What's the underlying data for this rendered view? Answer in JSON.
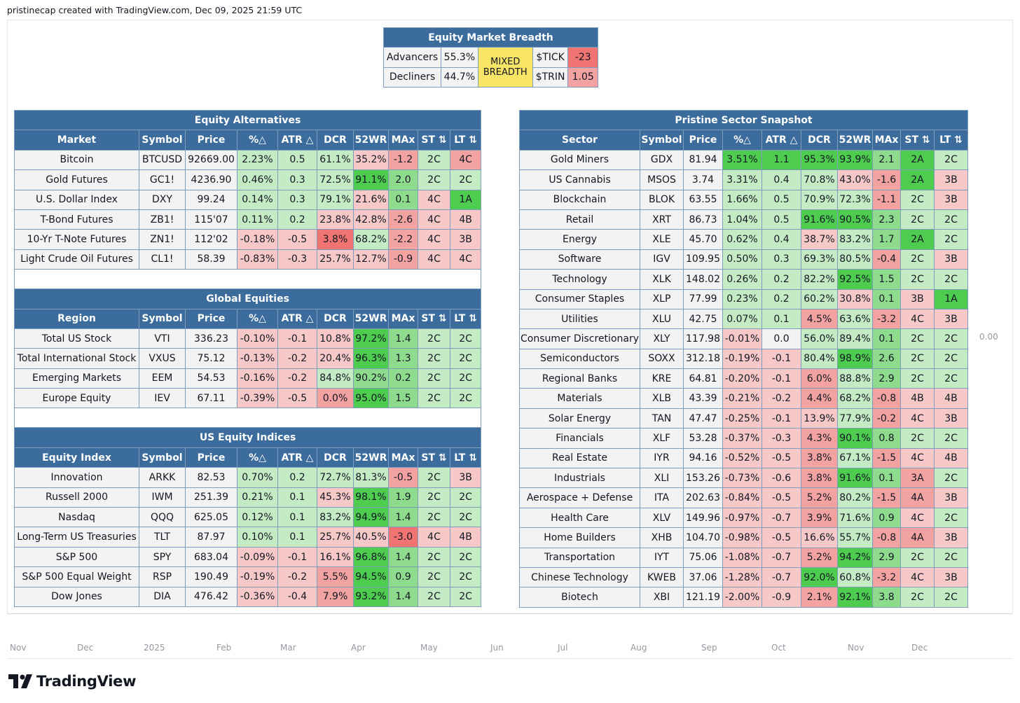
{
  "header": {
    "text": "pristinecap created with TradingView.com, Dec 09, 2025 21:59 UTC"
  },
  "breadth": {
    "title": "Equity Market Breadth",
    "advancers_label": "Advancers",
    "advancers_value": "55.3%",
    "decliners_label": "Decliners",
    "decliners_value": "44.7%",
    "status_line1": "MIXED",
    "status_line2": "BREADTH",
    "tick_label": "$TICK",
    "tick_value": "-23",
    "trin_label": "$TRIN",
    "trin_value": "1.05"
  },
  "columns": {
    "pct": "%△",
    "atr": "ATR △",
    "dcr": "DCR",
    "wr": "52WR",
    "max": "MAx",
    "st": "ST ⇅",
    "lt": "LT ⇅",
    "symbol": "Symbol",
    "price": "Price"
  },
  "alternatives": {
    "title": "Equity Alternatives",
    "first_col": "Market",
    "rows": [
      {
        "name": "Bitcoin",
        "symbol": "BTCUSD",
        "price": "92669.00",
        "pct": "2.23%",
        "atr": "0.5",
        "dcr": "61.1%",
        "wr": "35.2%",
        "max": "-1.2",
        "st": "2C",
        "lt": "4C",
        "c": [
          "g1",
          "g1",
          "g1",
          "r1",
          "r2",
          "g1",
          "r2"
        ]
      },
      {
        "name": "Gold Futures",
        "symbol": "GC1!",
        "price": "4236.90",
        "pct": "0.46%",
        "atr": "0.3",
        "dcr": "72.5%",
        "wr": "91.1%",
        "max": "2.0",
        "st": "2C",
        "lt": "2C",
        "c": [
          "g1",
          "g1",
          "g1",
          "g3",
          "g2",
          "g1",
          "g1"
        ]
      },
      {
        "name": "U.S. Dollar Index",
        "symbol": "DXY",
        "price": "99.24",
        "pct": "0.14%",
        "atr": "0.3",
        "dcr": "79.1%",
        "wr": "21.6%",
        "max": "0.1",
        "st": "4C",
        "lt": "1A",
        "c": [
          "g1",
          "g1",
          "g1",
          "r1",
          "g2",
          "r1",
          "g3"
        ]
      },
      {
        "name": "T-Bond Futures",
        "symbol": "ZB1!",
        "price": "115'07",
        "pct": "0.11%",
        "atr": "0.2",
        "dcr": "23.8%",
        "wr": "42.8%",
        "max": "-2.6",
        "st": "4C",
        "lt": "4B",
        "c": [
          "g1",
          "g1",
          "r1",
          "r1",
          "r2",
          "r1",
          "r1"
        ]
      },
      {
        "name": "10-Yr T-Note Futures",
        "symbol": "ZN1!",
        "price": "112'02",
        "pct": "-0.18%",
        "atr": "-0.5",
        "dcr": "3.8%",
        "wr": "68.2%",
        "max": "-2.2",
        "st": "4C",
        "lt": "3B",
        "c": [
          "r1",
          "r1",
          "r3",
          "g1",
          "r2",
          "r1",
          "r1"
        ]
      },
      {
        "name": "Light Crude Oil Futures",
        "symbol": "CL1!",
        "price": "58.39",
        "pct": "-0.83%",
        "atr": "-0.3",
        "dcr": "25.7%",
        "wr": "12.7%",
        "max": "-0.9",
        "st": "4C",
        "lt": "4C",
        "c": [
          "r1",
          "r1",
          "r1",
          "r1",
          "r2",
          "r1",
          "r1"
        ]
      }
    ]
  },
  "global": {
    "title": "Global Equities",
    "first_col": "Region",
    "rows": [
      {
        "name": "Total US Stock",
        "symbol": "VTI",
        "price": "336.23",
        "pct": "-0.10%",
        "atr": "-0.1",
        "dcr": "10.8%",
        "wr": "97.2%",
        "max": "1.4",
        "st": "2C",
        "lt": "2C",
        "c": [
          "r1",
          "r1",
          "r1",
          "g3",
          "g2",
          "g1",
          "g1"
        ]
      },
      {
        "name": "Total International Stock",
        "symbol": "VXUS",
        "price": "75.12",
        "pct": "-0.13%",
        "atr": "-0.2",
        "dcr": "20.4%",
        "wr": "96.3%",
        "max": "1.3",
        "st": "2C",
        "lt": "2C",
        "c": [
          "r1",
          "r1",
          "r1",
          "g3",
          "g2",
          "g1",
          "g1"
        ]
      },
      {
        "name": "Emerging Markets",
        "symbol": "EEM",
        "price": "54.53",
        "pct": "-0.16%",
        "atr": "-0.2",
        "dcr": "84.8%",
        "wr": "90.2%",
        "max": "0.2",
        "st": "2C",
        "lt": "2C",
        "c": [
          "r1",
          "r1",
          "g1",
          "g2",
          "g2",
          "g1",
          "g1"
        ]
      },
      {
        "name": "Europe Equity",
        "symbol": "IEV",
        "price": "67.11",
        "pct": "-0.39%",
        "atr": "-0.5",
        "dcr": "0.0%",
        "wr": "95.0%",
        "max": "1.5",
        "st": "2C",
        "lt": "2C",
        "c": [
          "r1",
          "r1",
          "r2",
          "g3",
          "g2",
          "g1",
          "g1"
        ]
      }
    ]
  },
  "indices": {
    "title": "US Equity Indices",
    "first_col": "Equity Index",
    "rows": [
      {
        "name": "Innovation",
        "symbol": "ARKK",
        "price": "82.53",
        "pct": "0.70%",
        "atr": "0.2",
        "dcr": "72.7%",
        "wr": "81.3%",
        "max": "-0.5",
        "st": "2C",
        "lt": "3B",
        "c": [
          "g1",
          "g1",
          "g1",
          "g1",
          "r2",
          "g1",
          "r1"
        ]
      },
      {
        "name": "Russell 2000",
        "symbol": "IWM",
        "price": "251.39",
        "pct": "0.21%",
        "atr": "0.1",
        "dcr": "45.3%",
        "wr": "98.1%",
        "max": "1.9",
        "st": "2C",
        "lt": "2C",
        "c": [
          "g1",
          "g1",
          "r1",
          "g3",
          "g2",
          "g1",
          "g1"
        ]
      },
      {
        "name": "Nasdaq",
        "symbol": "QQQ",
        "price": "625.05",
        "pct": "0.12%",
        "atr": "0.1",
        "dcr": "83.2%",
        "wr": "94.9%",
        "max": "1.4",
        "st": "2C",
        "lt": "2C",
        "c": [
          "g1",
          "g1",
          "g1",
          "g3",
          "g2",
          "g1",
          "g1"
        ]
      },
      {
        "name": "Long-Term US Treasuries",
        "symbol": "TLT",
        "price": "87.97",
        "pct": "0.10%",
        "atr": "0.1",
        "dcr": "25.7%",
        "wr": "40.5%",
        "max": "-3.0",
        "st": "4C",
        "lt": "4B",
        "c": [
          "g1",
          "g1",
          "r1",
          "r1",
          "r3",
          "r1",
          "r1"
        ]
      },
      {
        "name": "S&P 500",
        "symbol": "SPY",
        "price": "683.04",
        "pct": "-0.09%",
        "atr": "-0.1",
        "dcr": "16.1%",
        "wr": "96.8%",
        "max": "1.4",
        "st": "2C",
        "lt": "2C",
        "c": [
          "r1",
          "r1",
          "r1",
          "g3",
          "g2",
          "g1",
          "g1"
        ]
      },
      {
        "name": "S&P 500 Equal Weight",
        "symbol": "RSP",
        "price": "190.49",
        "pct": "-0.19%",
        "atr": "-0.2",
        "dcr": "5.5%",
        "wr": "94.5%",
        "max": "0.9",
        "st": "2C",
        "lt": "2C",
        "c": [
          "r1",
          "r1",
          "r2",
          "g3",
          "g2",
          "g1",
          "g1"
        ]
      },
      {
        "name": "Dow Jones",
        "symbol": "DIA",
        "price": "476.42",
        "pct": "-0.36%",
        "atr": "-0.4",
        "dcr": "7.9%",
        "wr": "93.2%",
        "max": "1.4",
        "st": "2C",
        "lt": "2C",
        "c": [
          "r1",
          "r1",
          "r2",
          "g3",
          "g2",
          "g1",
          "g1"
        ]
      }
    ]
  },
  "sectors": {
    "title": "Pristine Sector Snapshot",
    "first_col": "Sector",
    "rows": [
      {
        "name": "Gold Miners",
        "symbol": "GDX",
        "price": "81.94",
        "pct": "3.51%",
        "atr": "1.1",
        "dcr": "95.3%",
        "wr": "93.9%",
        "max": "2.1",
        "st": "2A",
        "lt": "2C",
        "c": [
          "g3",
          "g3",
          "g3",
          "g3",
          "g2",
          "g3",
          "g1"
        ]
      },
      {
        "name": "US Cannabis",
        "symbol": "MSOS",
        "price": "3.74",
        "pct": "3.31%",
        "atr": "0.4",
        "dcr": "70.8%",
        "wr": "43.0%",
        "max": "-1.6",
        "st": "2A",
        "lt": "3B",
        "c": [
          "g1",
          "g1",
          "g1",
          "r1",
          "r2",
          "g3",
          "r1"
        ]
      },
      {
        "name": "Blockchain",
        "symbol": "BLOK",
        "price": "63.55",
        "pct": "1.66%",
        "atr": "0.5",
        "dcr": "70.9%",
        "wr": "72.3%",
        "max": "-1.1",
        "st": "2C",
        "lt": "3B",
        "c": [
          "g1",
          "g1",
          "g1",
          "g1",
          "r2",
          "g1",
          "r1"
        ]
      },
      {
        "name": "Retail",
        "symbol": "XRT",
        "price": "86.73",
        "pct": "1.04%",
        "atr": "0.5",
        "dcr": "91.6%",
        "wr": "90.5%",
        "max": "2.3",
        "st": "2C",
        "lt": "2C",
        "c": [
          "g1",
          "g1",
          "g3",
          "g3",
          "g2",
          "g1",
          "g1"
        ]
      },
      {
        "name": "Energy",
        "symbol": "XLE",
        "price": "45.70",
        "pct": "0.62%",
        "atr": "0.4",
        "dcr": "38.7%",
        "wr": "83.2%",
        "max": "1.7",
        "st": "2A",
        "lt": "2C",
        "c": [
          "g1",
          "g1",
          "r1",
          "g1",
          "g2",
          "g3",
          "g1"
        ]
      },
      {
        "name": "Software",
        "symbol": "IGV",
        "price": "109.95",
        "pct": "0.50%",
        "atr": "0.3",
        "dcr": "69.3%",
        "wr": "80.5%",
        "max": "-0.4",
        "st": "2C",
        "lt": "3B",
        "c": [
          "g1",
          "g1",
          "g1",
          "g1",
          "r2",
          "g1",
          "r1"
        ]
      },
      {
        "name": "Technology",
        "symbol": "XLK",
        "price": "148.02",
        "pct": "0.26%",
        "atr": "0.2",
        "dcr": "82.2%",
        "wr": "92.5%",
        "max": "1.5",
        "st": "2C",
        "lt": "2C",
        "c": [
          "g1",
          "g1",
          "g1",
          "g3",
          "g2",
          "g1",
          "g1"
        ]
      },
      {
        "name": "Consumer Staples",
        "symbol": "XLP",
        "price": "77.99",
        "pct": "0.23%",
        "atr": "0.2",
        "dcr": "60.2%",
        "wr": "30.8%",
        "max": "0.1",
        "st": "3B",
        "lt": "1A",
        "c": [
          "g1",
          "g1",
          "g1",
          "r1",
          "g2",
          "r1",
          "g3"
        ]
      },
      {
        "name": "Utilities",
        "symbol": "XLU",
        "price": "42.75",
        "pct": "0.07%",
        "atr": "0.1",
        "dcr": "4.5%",
        "wr": "63.6%",
        "max": "-3.2",
        "st": "4C",
        "lt": "3B",
        "c": [
          "g1",
          "g1",
          "r2",
          "g1",
          "r2",
          "r1",
          "r1"
        ]
      },
      {
        "name": "Consumer Discretionary",
        "symbol": "XLY",
        "price": "117.98",
        "pct": "-0.01%",
        "atr": "0.0",
        "dcr": "56.0%",
        "wr": "89.4%",
        "max": "0.1",
        "st": "2C",
        "lt": "2C",
        "c": [
          "r1",
          "n0",
          "g1",
          "g1",
          "g2",
          "g1",
          "g1"
        ]
      },
      {
        "name": "Semiconductors",
        "symbol": "SOXX",
        "price": "312.18",
        "pct": "-0.19%",
        "atr": "-0.1",
        "dcr": "80.4%",
        "wr": "98.9%",
        "max": "2.6",
        "st": "2C",
        "lt": "2C",
        "c": [
          "r1",
          "r1",
          "g1",
          "g3",
          "g2",
          "g1",
          "g1"
        ]
      },
      {
        "name": "Regional Banks",
        "symbol": "KRE",
        "price": "64.81",
        "pct": "-0.20%",
        "atr": "-0.1",
        "dcr": "6.0%",
        "wr": "88.8%",
        "max": "2.9",
        "st": "2C",
        "lt": "2C",
        "c": [
          "r1",
          "r1",
          "r2",
          "g1",
          "g2",
          "g1",
          "g1"
        ]
      },
      {
        "name": "Materials",
        "symbol": "XLB",
        "price": "43.39",
        "pct": "-0.21%",
        "atr": "-0.2",
        "dcr": "4.4%",
        "wr": "68.2%",
        "max": "-0.8",
        "st": "4B",
        "lt": "4B",
        "c": [
          "r1",
          "r1",
          "r2",
          "g1",
          "r2",
          "r1",
          "r1"
        ]
      },
      {
        "name": "Solar Energy",
        "symbol": "TAN",
        "price": "47.47",
        "pct": "-0.25%",
        "atr": "-0.1",
        "dcr": "13.9%",
        "wr": "77.9%",
        "max": "-0.2",
        "st": "4C",
        "lt": "3B",
        "c": [
          "r1",
          "r1",
          "r1",
          "g1",
          "r2",
          "r1",
          "r1"
        ]
      },
      {
        "name": "Financials",
        "symbol": "XLF",
        "price": "53.28",
        "pct": "-0.37%",
        "atr": "-0.3",
        "dcr": "4.3%",
        "wr": "90.1%",
        "max": "0.8",
        "st": "2C",
        "lt": "2C",
        "c": [
          "r1",
          "r1",
          "r2",
          "g3",
          "g2",
          "g1",
          "g1"
        ]
      },
      {
        "name": "Real Estate",
        "symbol": "IYR",
        "price": "94.16",
        "pct": "-0.52%",
        "atr": "-0.5",
        "dcr": "3.8%",
        "wr": "67.1%",
        "max": "-1.5",
        "st": "4C",
        "lt": "4B",
        "c": [
          "r1",
          "r1",
          "r2",
          "g1",
          "r2",
          "r1",
          "r1"
        ]
      },
      {
        "name": "Industrials",
        "symbol": "XLI",
        "price": "153.26",
        "pct": "-0.73%",
        "atr": "-0.6",
        "dcr": "3.8%",
        "wr": "91.6%",
        "max": "0.1",
        "st": "3A",
        "lt": "2C",
        "c": [
          "r1",
          "r1",
          "r2",
          "g3",
          "g2",
          "r2",
          "g1"
        ]
      },
      {
        "name": "Aerospace + Defense",
        "symbol": "ITA",
        "price": "202.63",
        "pct": "-0.84%",
        "atr": "-0.5",
        "dcr": "5.2%",
        "wr": "80.2%",
        "max": "-1.5",
        "st": "4A",
        "lt": "3B",
        "c": [
          "r1",
          "r1",
          "r2",
          "g1",
          "r2",
          "r2",
          "r1"
        ]
      },
      {
        "name": "Health Care",
        "symbol": "XLV",
        "price": "149.96",
        "pct": "-0.97%",
        "atr": "-0.7",
        "dcr": "3.9%",
        "wr": "71.6%",
        "max": "0.9",
        "st": "4C",
        "lt": "2C",
        "c": [
          "r1",
          "r1",
          "r2",
          "g1",
          "g2",
          "r1",
          "g1"
        ]
      },
      {
        "name": "Home Builders",
        "symbol": "XHB",
        "price": "104.70",
        "pct": "-0.98%",
        "atr": "-0.5",
        "dcr": "16.6%",
        "wr": "55.7%",
        "max": "-0.8",
        "st": "4A",
        "lt": "3B",
        "c": [
          "r1",
          "r1",
          "r1",
          "g1",
          "r2",
          "r2",
          "r1"
        ]
      },
      {
        "name": "Transportation",
        "symbol": "IYT",
        "price": "75.06",
        "pct": "-1.08%",
        "atr": "-0.7",
        "dcr": "5.2%",
        "wr": "94.2%",
        "max": "2.9",
        "st": "2C",
        "lt": "2C",
        "c": [
          "r1",
          "r1",
          "r2",
          "g3",
          "g2",
          "g1",
          "g1"
        ]
      },
      {
        "name": "Chinese Technology",
        "symbol": "KWEB",
        "price": "37.06",
        "pct": "-1.28%",
        "atr": "-0.7",
        "dcr": "92.0%",
        "wr": "60.8%",
        "max": "-3.2",
        "st": "4C",
        "lt": "3B",
        "c": [
          "r1",
          "r1",
          "g3",
          "g1",
          "r2",
          "r1",
          "r1"
        ]
      },
      {
        "name": "Biotech",
        "symbol": "XBI",
        "price": "121.19",
        "pct": "-2.00%",
        "atr": "-0.9",
        "dcr": "2.1%",
        "wr": "92.1%",
        "max": "3.8",
        "st": "2C",
        "lt": "2C",
        "c": [
          "r1",
          "r1",
          "r2",
          "g3",
          "g2",
          "g1",
          "g1"
        ]
      }
    ]
  },
  "x_axis": [
    "Nov",
    "Dec",
    "2025",
    "Feb",
    "Mar",
    "Apr",
    "May",
    "Jun",
    "Jul",
    "Aug",
    "Sep",
    "Oct",
    "Nov",
    "Dec"
  ],
  "right_scale": "0.00",
  "footer": {
    "brand": "TradingView"
  }
}
